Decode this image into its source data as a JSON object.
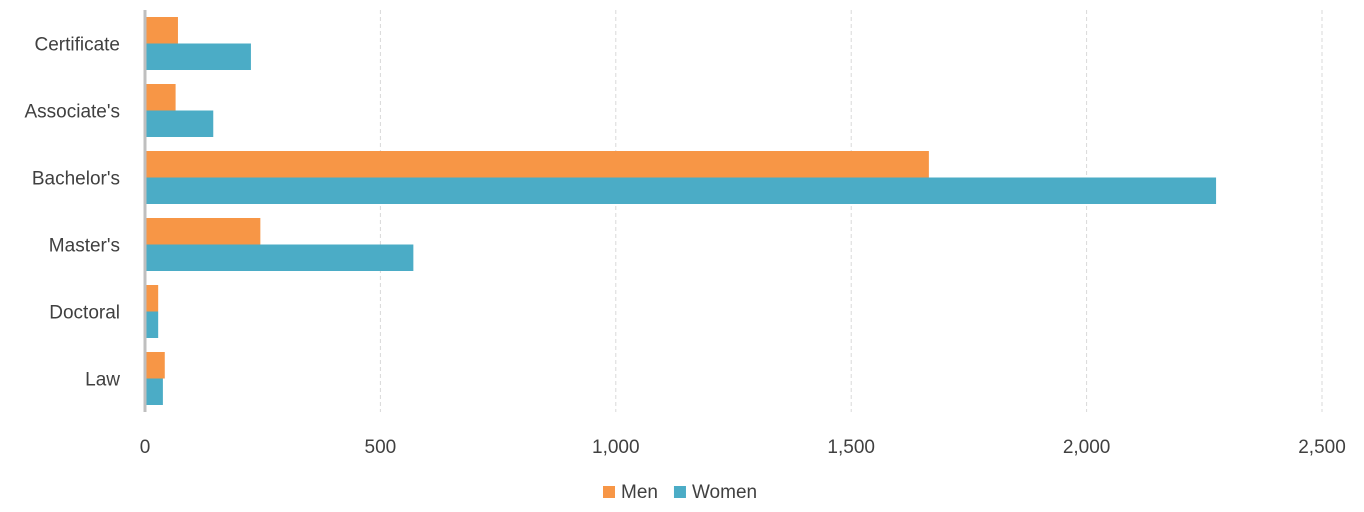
{
  "chart_data": {
    "type": "bar",
    "orientation": "horizontal",
    "title": "",
    "xlabel": "",
    "ylabel": "",
    "categories": [
      "Certificate",
      "Associate's",
      "Bachelor's",
      "Master's",
      "Doctoral",
      "Law"
    ],
    "series": [
      {
        "name": "Men",
        "color": "#f79646",
        "values": [
          70,
          65,
          1665,
          245,
          28,
          42
        ]
      },
      {
        "name": "Women",
        "color": "#4bacc6",
        "values": [
          225,
          145,
          2275,
          570,
          28,
          38
        ]
      }
    ],
    "xlim": [
      0,
      2500
    ],
    "ticks": [
      "0",
      "500",
      "1,000",
      "1,500",
      "2,000",
      "2,500"
    ],
    "tick_values": [
      0,
      500,
      1000,
      1500,
      2000,
      2500
    ],
    "grid": true,
    "legend_position": "bottom"
  }
}
